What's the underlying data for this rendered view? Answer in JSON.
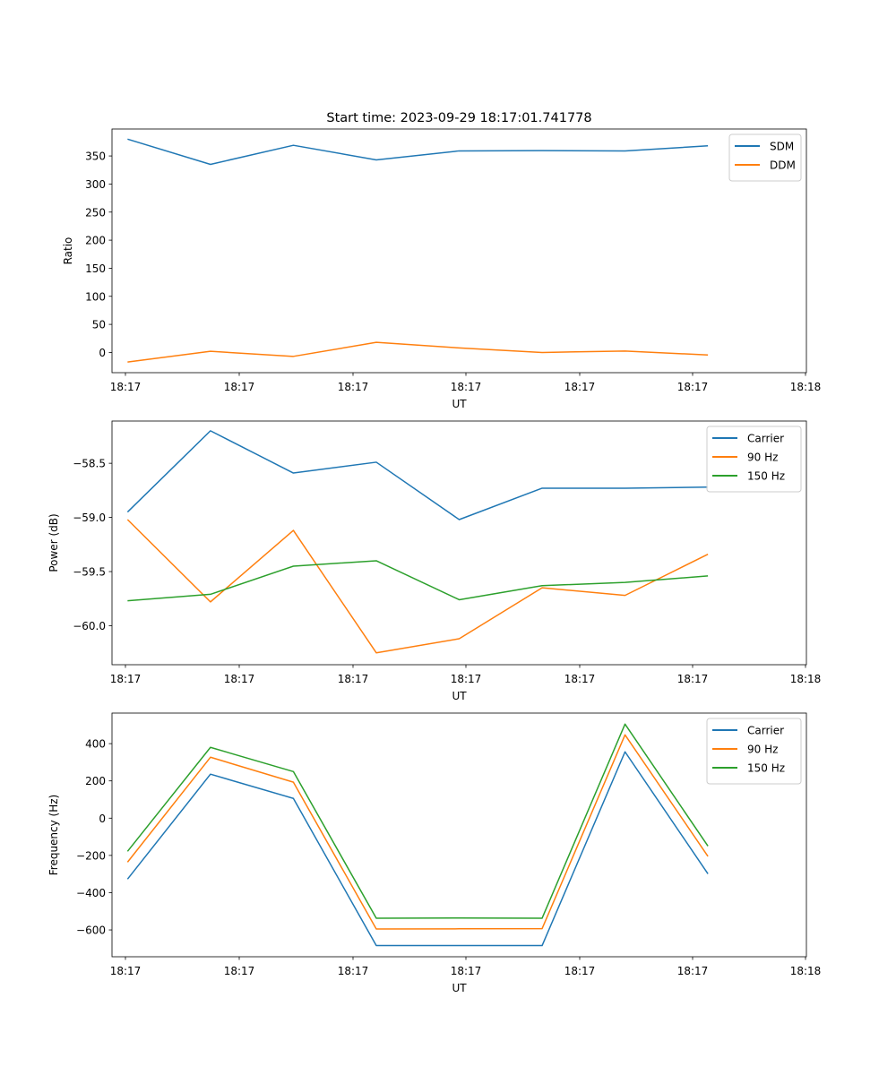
{
  "figure": {
    "title": "Start time: 2023-09-29 18:17:01.741778"
  },
  "chart_data": [
    {
      "type": "line",
      "title": "Start time: 2023-09-29 18:17:01.741778",
      "xlabel": "UT",
      "ylabel": "Ratio",
      "x": [
        1,
        2,
        3,
        4,
        5,
        6,
        7,
        8
      ],
      "xlim": [
        0.8125,
        9.1875
      ],
      "xticks": [
        0.8125,
        2.333,
        3.854,
        5.375,
        6.896,
        8.417,
        9.9375
      ],
      "xtick_labels": [
        "18:17",
        "18:17",
        "18:17",
        "18:17",
        "18:17",
        "18:17",
        "18:18"
      ],
      "ylim": [
        -36,
        398
      ],
      "yticks": [
        0,
        50,
        100,
        150,
        200,
        250,
        300,
        350
      ],
      "ytick_labels": [
        "0",
        "50",
        "100",
        "150",
        "200",
        "250",
        "300",
        "350"
      ],
      "legend_position": "top-right",
      "grid": false,
      "series": [
        {
          "name": "SDM",
          "color": "#1f77b4",
          "values": [
            380,
            335,
            369,
            343,
            359,
            359.5,
            359,
            368
          ]
        },
        {
          "name": "DDM",
          "color": "#ff7f0e",
          "values": [
            -17,
            2,
            -7,
            18,
            8,
            0,
            2.5,
            -4.5
          ]
        }
      ]
    },
    {
      "type": "line",
      "title": "",
      "xlabel": "UT",
      "ylabel": "Power (dB)",
      "x": [
        1,
        2,
        3,
        4,
        5,
        6,
        7,
        8
      ],
      "xlim": [
        0.8125,
        9.1875
      ],
      "xticks": [
        0.8125,
        2.333,
        3.854,
        5.375,
        6.896,
        8.417,
        9.9375
      ],
      "xtick_labels": [
        "18:17",
        "18:17",
        "18:17",
        "18:17",
        "18:17",
        "18:17",
        "18:18"
      ],
      "ylim": [
        -60.36,
        -58.11
      ],
      "yticks": [
        -58.5,
        -59.0,
        -59.5,
        -60.0
      ],
      "ytick_labels": [
        "−58.5",
        "−59.0",
        "−59.5",
        "−60.0"
      ],
      "legend_position": "top-right",
      "grid": false,
      "series": [
        {
          "name": "Carrier",
          "color": "#1f77b4",
          "values": [
            -58.95,
            -58.2,
            -58.59,
            -58.49,
            -59.02,
            -58.73,
            -58.73,
            -58.72
          ]
        },
        {
          "name": "90 Hz",
          "color": "#ff7f0e",
          "values": [
            -59.02,
            -59.78,
            -59.12,
            -60.25,
            -60.12,
            -59.65,
            -59.72,
            -59.34
          ]
        },
        {
          "name": "150 Hz",
          "color": "#2ca02c",
          "values": [
            -59.77,
            -59.71,
            -59.45,
            -59.4,
            -59.76,
            -59.63,
            -59.6,
            -59.54
          ]
        }
      ]
    },
    {
      "type": "line",
      "title": "",
      "xlabel": "UT",
      "ylabel": "Frequency (Hz)",
      "x": [
        1,
        2,
        3,
        4,
        5,
        6,
        7,
        8
      ],
      "xlim": [
        0.8125,
        9.1875
      ],
      "xticks": [
        0.8125,
        2.333,
        3.854,
        5.375,
        6.896,
        8.417,
        9.9375
      ],
      "xtick_labels": [
        "18:17",
        "18:17",
        "18:17",
        "18:17",
        "18:17",
        "18:17",
        "18:18"
      ],
      "ylim": [
        -744,
        564
      ],
      "yticks": [
        400,
        200,
        0,
        -200,
        -400,
        -600
      ],
      "ytick_labels": [
        "400",
        "200",
        "0",
        "−200",
        "−400",
        "−600"
      ],
      "legend_position": "top-right",
      "grid": false,
      "series": [
        {
          "name": "Carrier",
          "color": "#1f77b4",
          "values": [
            -327,
            236,
            106,
            -684,
            -684,
            -684,
            356,
            -299
          ]
        },
        {
          "name": "90 Hz",
          "color": "#ff7f0e",
          "values": [
            -236,
            327,
            193,
            -595,
            -594,
            -593,
            447,
            -205
          ]
        },
        {
          "name": "150 Hz",
          "color": "#2ca02c",
          "values": [
            -178,
            380,
            250,
            -537,
            -536,
            -537,
            505,
            -150
          ]
        }
      ]
    }
  ]
}
